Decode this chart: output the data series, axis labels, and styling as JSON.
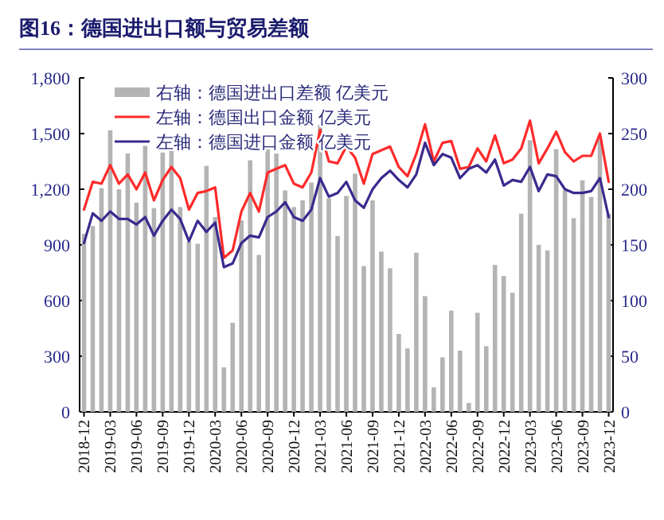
{
  "chart_data": {
    "type": "bar",
    "title": "图16：德国进出口额与贸易差额",
    "categories": [
      "2018-12",
      null,
      null,
      "2019-03",
      null,
      null,
      "2019-06",
      null,
      null,
      "2019-09",
      null,
      null,
      "2019-12",
      null,
      null,
      "2020-03",
      null,
      null,
      "2020-06",
      null,
      null,
      "2020-09",
      null,
      null,
      "2020-12",
      null,
      null,
      "2021-03",
      null,
      null,
      "2021-06",
      null,
      null,
      "2021-09",
      null,
      null,
      "2021-12",
      null,
      null,
      "2022-03",
      null,
      null,
      "2022-06",
      null,
      null,
      "2022-09",
      null,
      null,
      "2022-12",
      null,
      null,
      "2023-03",
      null,
      null,
      "2023-06",
      null,
      null,
      "2023-09",
      null,
      null,
      "2023-12"
    ],
    "series": [
      {
        "name": "右轴：德国进出口差额 亿美元",
        "axis": "y2",
        "color": "#b4b4b4",
        "values": [
          160,
          167,
          201,
          253,
          200,
          232,
          188,
          239,
          183,
          233,
          236,
          184,
          153,
          151,
          221,
          175,
          40,
          80,
          172,
          226,
          141,
          236,
          232,
          199,
          184,
          190,
          206,
          258,
          192,
          158,
          194,
          214,
          131,
          190,
          144,
          129,
          70,
          57,
          143,
          104,
          22,
          49,
          91,
          55,
          8,
          89,
          59,
          132,
          122,
          107,
          178,
          244,
          150,
          145,
          236,
          199,
          174,
          208,
          193,
          245,
          178
        ]
      },
      {
        "name": "左轴：德国出口金额 亿美元",
        "type": "line",
        "color": "#ff2a2a",
        "values": [
          1090,
          1240,
          1230,
          1330,
          1230,
          1280,
          1200,
          1290,
          1140,
          1250,
          1320,
          1260,
          1090,
          1180,
          1190,
          1210,
          830,
          870,
          1080,
          1180,
          1080,
          1290,
          1310,
          1330,
          1230,
          1210,
          1290,
          1520,
          1350,
          1340,
          1430,
          1370,
          1230,
          1390,
          1410,
          1430,
          1320,
          1270,
          1390,
          1550,
          1350,
          1450,
          1460,
          1310,
          1320,
          1420,
          1350,
          1490,
          1340,
          1360,
          1420,
          1570,
          1340,
          1420,
          1510,
          1400,
          1350,
          1380,
          1380,
          1500,
          1240
        ]
      },
      {
        "name": "左轴：德国进口金额 亿美元",
        "type": "line",
        "color": "#3b2a8e",
        "values": [
          910,
          1070,
          1030,
          1080,
          1040,
          1040,
          1010,
          1050,
          950,
          1030,
          1090,
          1040,
          920,
          1030,
          970,
          1020,
          780,
          800,
          910,
          950,
          940,
          1050,
          1080,
          1130,
          1050,
          1030,
          1090,
          1260,
          1160,
          1180,
          1240,
          1140,
          1100,
          1200,
          1260,
          1300,
          1250,
          1210,
          1280,
          1450,
          1330,
          1390,
          1370,
          1260,
          1310,
          1330,
          1290,
          1360,
          1220,
          1250,
          1240,
          1320,
          1190,
          1280,
          1270,
          1200,
          1180,
          1180,
          1190,
          1260,
          1050
        ]
      }
    ],
    "ylim": [
      0,
      1800
    ],
    "yticks": [
      0,
      300,
      600,
      900,
      {
        "value": 1200,
        "label": "1,200"
      },
      {
        "value": 1500,
        "label": "1,500"
      },
      {
        "value": 1800,
        "label": "1,800"
      }
    ],
    "y2lim": [
      0,
      300
    ],
    "y2ticks": [
      0,
      50,
      100,
      150,
      200,
      250,
      300
    ],
    "legend": "top left",
    "grid": false
  }
}
